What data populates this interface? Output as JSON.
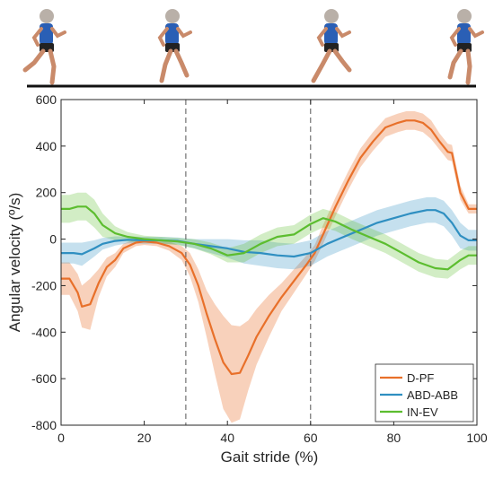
{
  "figure": {
    "runner_icon_name": "running-person-icon",
    "runner_phases": [
      "initial-contact",
      "midstance",
      "toe-off",
      "swing"
    ]
  },
  "chart_data": {
    "type": "line",
    "xlabel": "Gait stride (%)",
    "ylabel": "Angular velocity (º/s)",
    "xlim": [
      0,
      100
    ],
    "ylim": [
      -800,
      600
    ],
    "xticks": [
      0,
      20,
      40,
      60,
      80,
      100
    ],
    "yticks": [
      -800,
      -600,
      -400,
      -200,
      0,
      200,
      400,
      600
    ],
    "grid": false,
    "legend_position": "bottom-right",
    "vertical_reference_lines": [
      30,
      60
    ],
    "series": [
      {
        "name": "D-PF",
        "color": "#e8702a",
        "x": [
          0,
          2,
          4,
          5,
          7,
          9,
          11,
          13,
          15,
          18,
          20,
          23,
          26,
          29,
          31,
          33,
          35,
          37,
          39,
          41,
          43,
          45,
          47,
          50,
          53,
          56,
          59,
          61,
          63,
          66,
          69,
          72,
          75,
          78,
          81,
          83,
          85,
          87,
          89,
          91,
          93,
          94,
          96,
          98,
          100
        ],
        "mean": [
          -170,
          -170,
          -230,
          -290,
          -280,
          -190,
          -120,
          -90,
          -40,
          -15,
          -10,
          -15,
          -30,
          -60,
          -110,
          -200,
          -320,
          -430,
          -530,
          -580,
          -575,
          -500,
          -420,
          -330,
          -250,
          -180,
          -110,
          -60,
          20,
          140,
          250,
          350,
          420,
          480,
          500,
          510,
          510,
          500,
          470,
          420,
          375,
          370,
          200,
          130,
          130
        ],
        "band": [
          70,
          70,
          80,
          90,
          110,
          60,
          40,
          30,
          20,
          15,
          15,
          15,
          20,
          30,
          50,
          70,
          100,
          150,
          200,
          210,
          200,
          150,
          120,
          90,
          60,
          50,
          40,
          35,
          40,
          40,
          40,
          40,
          40,
          40,
          40,
          40,
          40,
          40,
          40,
          35,
          35,
          35,
          30,
          20,
          20
        ]
      },
      {
        "name": "ABD-ABB",
        "color": "#2f8fc1",
        "x": [
          0,
          3,
          5,
          8,
          10,
          13,
          16,
          20,
          24,
          28,
          32,
          36,
          40,
          44,
          48,
          52,
          56,
          60,
          64,
          68,
          72,
          76,
          80,
          84,
          88,
          90,
          92,
          94,
          96,
          98,
          100
        ],
        "mean": [
          -60,
          -60,
          -65,
          -40,
          -20,
          -8,
          -3,
          -5,
          -5,
          -8,
          -20,
          -30,
          -40,
          -55,
          -60,
          -70,
          -75,
          -60,
          -20,
          10,
          40,
          70,
          90,
          110,
          125,
          125,
          110,
          70,
          15,
          -5,
          -5
        ],
        "band": [
          45,
          45,
          50,
          35,
          25,
          20,
          15,
          15,
          15,
          15,
          20,
          30,
          40,
          50,
          55,
          55,
          55,
          55,
          55,
          55,
          55,
          55,
          55,
          55,
          55,
          55,
          55,
          55,
          55,
          45,
          45
        ]
      },
      {
        "name": "IN-EV",
        "color": "#5cbd2f",
        "x": [
          0,
          2,
          4,
          6,
          8,
          10,
          13,
          16,
          20,
          24,
          28,
          32,
          36,
          40,
          44,
          48,
          52,
          56,
          60,
          63,
          66,
          70,
          74,
          78,
          82,
          86,
          90,
          93,
          96,
          98,
          100
        ],
        "mean": [
          130,
          130,
          140,
          140,
          110,
          60,
          25,
          10,
          0,
          -5,
          -10,
          -20,
          -40,
          -70,
          -60,
          -20,
          10,
          20,
          65,
          90,
          75,
          40,
          10,
          -20,
          -60,
          -100,
          -125,
          -130,
          -90,
          -70,
          -70
        ],
        "band": [
          60,
          60,
          60,
          60,
          60,
          50,
          30,
          20,
          15,
          15,
          15,
          20,
          25,
          30,
          40,
          40,
          40,
          40,
          40,
          40,
          40,
          40,
          40,
          40,
          40,
          40,
          40,
          40,
          40,
          40,
          40
        ]
      }
    ]
  }
}
